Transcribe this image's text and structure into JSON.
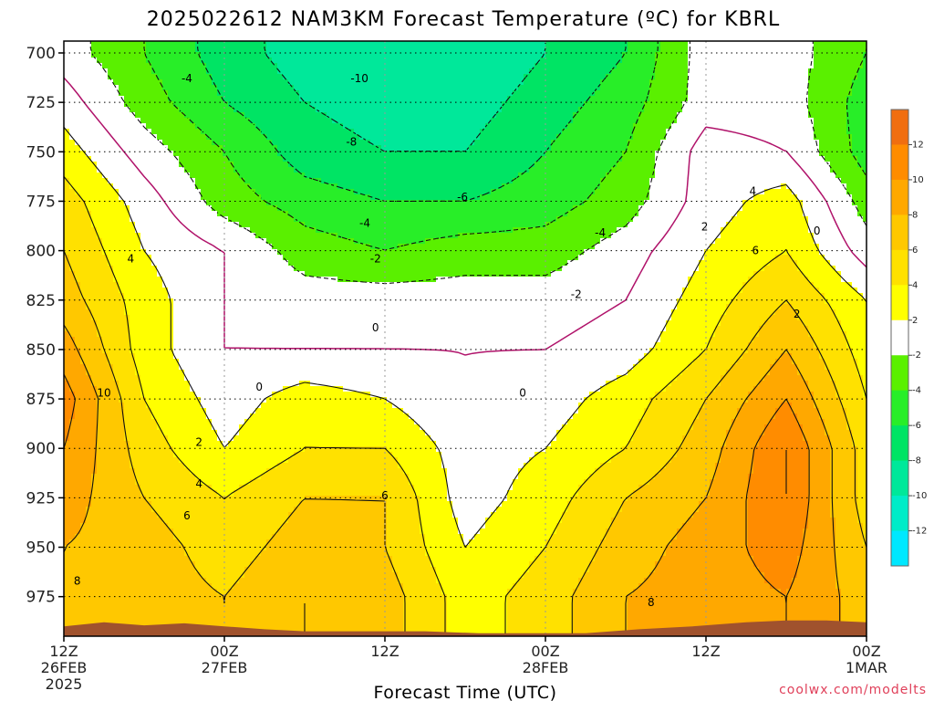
{
  "chart_data": {
    "type": "heatmap",
    "title": "2025022612 NAM3KM Forecast Temperature (ºC) for KBRL",
    "xlabel": "Forecast Time (UTC)",
    "ylabel": "",
    "credit": "coolwx.com/modelts",
    "x_ticks": [
      {
        "hour": 0,
        "lines": [
          "12Z",
          "26FEB",
          "2025"
        ]
      },
      {
        "hour": 12,
        "lines": [
          "00Z",
          "27FEB"
        ]
      },
      {
        "hour": 24,
        "lines": [
          "12Z"
        ]
      },
      {
        "hour": 36,
        "lines": [
          "00Z",
          "28FEB"
        ]
      },
      {
        "hour": 48,
        "lines": [
          "12Z"
        ]
      },
      {
        "hour": 60,
        "lines": [
          "00Z",
          "1MAR"
        ]
      }
    ],
    "xlim_hours": [
      0,
      60
    ],
    "y_ticks": [
      700,
      725,
      750,
      775,
      800,
      825,
      850,
      875,
      900,
      925,
      950,
      975
    ],
    "ylim_hpa": [
      694,
      995
    ],
    "grid": true,
    "colorbar": {
      "levels": [
        -14,
        -12,
        -10,
        -8,
        -6,
        -4,
        -2,
        2,
        4,
        6,
        8,
        10,
        12,
        14
      ],
      "labels": [
        12,
        10,
        8,
        6,
        4,
        2,
        -2,
        -4,
        -6,
        -8,
        -10,
        -12
      ],
      "colors": [
        "#00e8ff",
        "#00ecc8",
        "#00e89a",
        "#00e464",
        "#28ee28",
        "#5af000",
        "#ffffff",
        "#ffff00",
        "#ffe100",
        "#ffc800",
        "#ffa800",
        "#ff8c00",
        "#f06e10"
      ]
    },
    "contour_labels": [
      {
        "text": "-10",
        "hour": 22.1,
        "p": 713
      },
      {
        "text": "-8",
        "hour": 21.5,
        "p": 745
      },
      {
        "text": "-6",
        "hour": 29.8,
        "p": 773
      },
      {
        "text": "-4",
        "hour": 9.2,
        "p": 713
      },
      {
        "text": "-4",
        "hour": 22.5,
        "p": 786
      },
      {
        "text": "-4",
        "hour": 40.1,
        "p": 791
      },
      {
        "text": "-2",
        "hour": 23.3,
        "p": 804
      },
      {
        "text": "-2",
        "hour": 38.3,
        "p": 822
      },
      {
        "text": "0",
        "hour": 14.6,
        "p": 869
      },
      {
        "text": "0",
        "hour": 23.3,
        "p": 839
      },
      {
        "text": "0",
        "hour": 34.3,
        "p": 872
      },
      {
        "text": "0",
        "hour": 56.3,
        "p": 790
      },
      {
        "text": "2",
        "hour": 10.1,
        "p": 897
      },
      {
        "text": "2",
        "hour": 47.9,
        "p": 788
      },
      {
        "text": "2",
        "hour": 54.8,
        "p": 832
      },
      {
        "text": "4",
        "hour": 5.0,
        "p": 804
      },
      {
        "text": "4",
        "hour": 10.1,
        "p": 918
      },
      {
        "text": "4",
        "hour": 51.5,
        "p": 770
      },
      {
        "text": "6",
        "hour": 9.2,
        "p": 934
      },
      {
        "text": "6",
        "hour": 24.0,
        "p": 924
      },
      {
        "text": "6",
        "hour": 51.7,
        "p": 800
      },
      {
        "text": "8",
        "hour": 1.0,
        "p": 967
      },
      {
        "text": "8",
        "hour": 43.9,
        "p": 978
      },
      {
        "text": "10",
        "hour": 3.0,
        "p": 872
      }
    ],
    "temperature_grid": {
      "hours": [
        0,
        6,
        12,
        18,
        24,
        30,
        36,
        42,
        48,
        54,
        60
      ],
      "pressure_hpa": [
        700,
        725,
        750,
        775,
        800,
        825,
        850,
        875,
        900,
        925,
        950,
        975
      ],
      "values_c": [
        [
          -1,
          -4,
          -7,
          -9,
          -10,
          -10,
          -8,
          -6,
          -1,
          -1,
          -4
        ],
        [
          1,
          -3,
          -6,
          -8,
          -9,
          -9,
          -7,
          -5,
          -1,
          -1,
          -5
        ],
        [
          3,
          -1,
          -4,
          -7,
          -8,
          -8,
          -6,
          -4,
          1,
          0,
          -5
        ],
        [
          5,
          1,
          -3,
          -5,
          -6,
          -6,
          -5,
          -3,
          1,
          3,
          -3
        ],
        [
          6,
          2,
          0,
          -3,
          -4,
          -3,
          -3,
          -1,
          2,
          4,
          -1
        ],
        [
          7,
          3,
          0,
          -1,
          -1,
          -1,
          -1,
          0,
          3,
          6,
          2
        ],
        [
          9,
          3,
          0,
          0,
          0,
          0,
          0,
          1,
          4,
          8,
          3
        ],
        [
          11,
          4,
          1,
          3,
          2,
          0,
          1,
          3,
          6,
          10,
          4
        ],
        [
          10,
          5,
          2,
          4,
          4,
          1,
          2,
          4,
          7,
          12,
          5
        ],
        [
          9,
          6,
          4,
          6,
          6,
          1,
          3,
          6,
          8,
          12,
          5
        ],
        [
          8,
          7,
          5,
          7,
          6,
          2,
          4,
          7,
          9,
          11,
          6
        ],
        [
          8,
          7,
          6,
          8,
          7,
          3,
          5,
          8,
          9,
          10,
          7
        ]
      ]
    },
    "terrain_color": "#a0522d"
  }
}
